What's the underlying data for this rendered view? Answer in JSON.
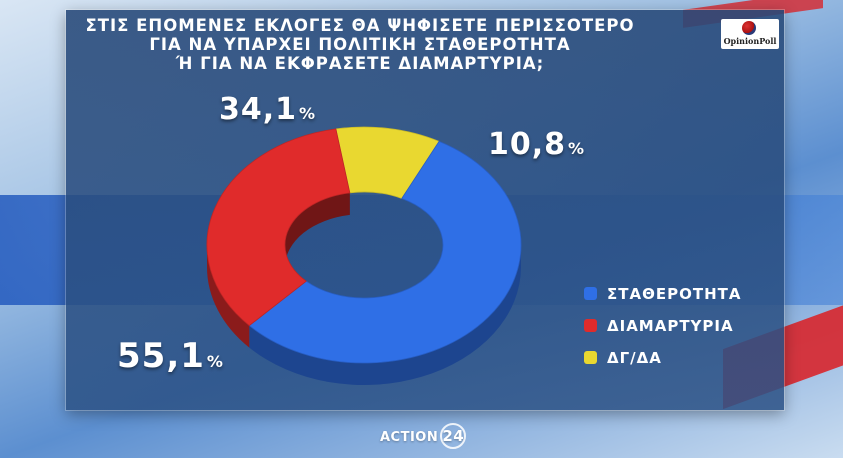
{
  "header": {
    "title_lines": [
      "ΣΤΙΣ ΕΠΟΜΕΝΕΣ ΕΚΛΟΓΕΣ ΘΑ ΨΗΦΙΣΕΤΕ ΠΕΡΙΣΣΟΤΕΡΟ",
      "ΓΙΑ ΝΑ ΥΠΑΡΧΕΙ ΠΟΛΙΤΙΚΗ ΣΤΑΘΕΡΟΤΗΤΑ",
      "Ή ΓΙΑ ΝΑ ΕΚΦΡΑΣΕΤΕ ΔΙΑΜΑΡΤΥΡΙΑ;"
    ],
    "logo_text": "OpinionPoll"
  },
  "chart_data": {
    "type": "pie",
    "style": "donut",
    "title": "ΣΤΙΣ ΕΠΟΜΕΝΕΣ ΕΚΛΟΓΕΣ ΘΑ ΨΗΦΙΣΕΤΕ ΠΕΡΙΣΣΟΤΕΡΟ ΓΙΑ ΝΑ ΥΠΑΡΧΕΙ ΠΟΛΙΤΙΚΗ ΣΤΑΘΕΡΟΤΗΤΑ Ή ΓΙΑ ΝΑ ΕΚΦΡΑΣΕΤΕ ΔΙΑΜΑΡΤΥΡΙΑ;",
    "slices": [
      {
        "label": "ΣΤΑΘΕΡΟΤΗΤΑ",
        "value": 55.1,
        "display": "55,1",
        "color": "#2f6fe6"
      },
      {
        "label": "ΔΙΑΜΑΡΤΥΡΙΑ",
        "value": 34.1,
        "display": "34,1",
        "color": "#e02b2b"
      },
      {
        "label": "ΔΓ/ΔΑ",
        "value": 10.8,
        "display": "10,8",
        "color": "#e9d830"
      }
    ],
    "percent_sign": "%",
    "legend_position": "right"
  },
  "footer": {
    "brand": "ACTION",
    "brand_number": "24"
  }
}
